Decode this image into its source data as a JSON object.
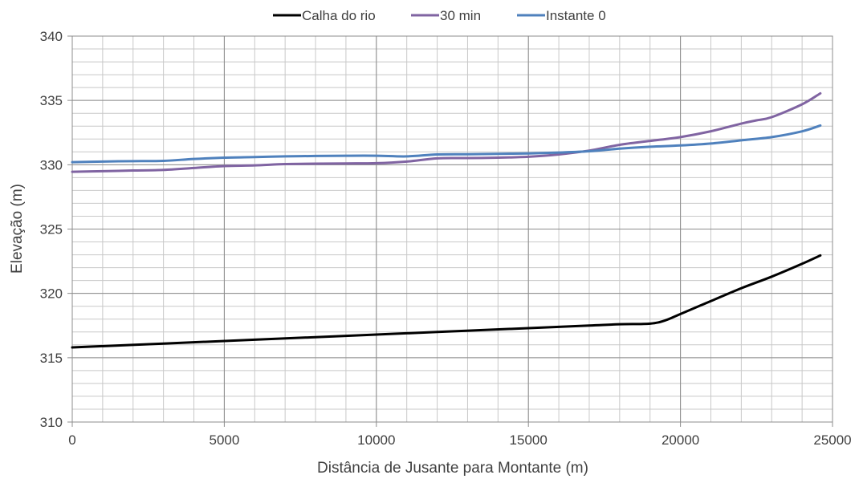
{
  "chart_data": {
    "type": "line",
    "xlabel": "Distância de Jusante para Montante (m)",
    "ylabel": "Elevação (m)",
    "xlim": [
      0,
      25000
    ],
    "ylim": [
      310,
      340
    ],
    "x_ticks": [
      0,
      5000,
      10000,
      15000,
      20000,
      25000
    ],
    "y_ticks": [
      310,
      315,
      320,
      325,
      330,
      335,
      340
    ],
    "x_tick_labels": [
      "0",
      "5000",
      "10000",
      "15000",
      "20000",
      "25000"
    ],
    "y_tick_labels": [
      "310",
      "315",
      "320",
      "325",
      "330",
      "335",
      "340"
    ],
    "grid": "on (major and minor)",
    "legend_position": "top",
    "series": [
      {
        "name": "Calha do rio",
        "color": "#000000",
        "points": [
          [
            0,
            315.8
          ],
          [
            3000,
            316.1
          ],
          [
            6000,
            316.4
          ],
          [
            9000,
            316.7
          ],
          [
            12000,
            317.0
          ],
          [
            15000,
            317.3
          ],
          [
            17000,
            317.5
          ],
          [
            18000,
            317.6
          ],
          [
            19000,
            317.65
          ],
          [
            19500,
            317.9
          ],
          [
            20000,
            318.4
          ],
          [
            21000,
            319.4
          ],
          [
            22000,
            320.4
          ],
          [
            23000,
            321.3
          ],
          [
            24000,
            322.3
          ],
          [
            24600,
            322.95
          ]
        ]
      },
      {
        "name": "30 min",
        "color": "#8064A2",
        "points": [
          [
            0,
            329.45
          ],
          [
            1000,
            329.5
          ],
          [
            2000,
            329.55
          ],
          [
            3000,
            329.6
          ],
          [
            4000,
            329.75
          ],
          [
            5000,
            329.9
          ],
          [
            6000,
            329.95
          ],
          [
            7000,
            330.05
          ],
          [
            8000,
            330.08
          ],
          [
            9000,
            330.1
          ],
          [
            10000,
            330.12
          ],
          [
            11000,
            330.25
          ],
          [
            12000,
            330.5
          ],
          [
            13000,
            330.52
          ],
          [
            14000,
            330.55
          ],
          [
            15000,
            330.62
          ],
          [
            16000,
            330.8
          ],
          [
            17000,
            331.1
          ],
          [
            18000,
            331.55
          ],
          [
            19000,
            331.85
          ],
          [
            20000,
            332.15
          ],
          [
            21000,
            332.6
          ],
          [
            22000,
            333.2
          ],
          [
            22500,
            333.45
          ],
          [
            23000,
            333.7
          ],
          [
            24000,
            334.7
          ],
          [
            24600,
            335.55
          ]
        ]
      },
      {
        "name": "Instante 0",
        "color": "#4F81BD",
        "points": [
          [
            0,
            330.2
          ],
          [
            1000,
            330.25
          ],
          [
            2000,
            330.28
          ],
          [
            3000,
            330.3
          ],
          [
            4000,
            330.45
          ],
          [
            5000,
            330.55
          ],
          [
            6000,
            330.6
          ],
          [
            7000,
            330.65
          ],
          [
            8000,
            330.68
          ],
          [
            9000,
            330.7
          ],
          [
            10000,
            330.7
          ],
          [
            11000,
            330.65
          ],
          [
            12000,
            330.8
          ],
          [
            13000,
            330.82
          ],
          [
            14000,
            330.85
          ],
          [
            15000,
            330.88
          ],
          [
            16000,
            330.95
          ],
          [
            17000,
            331.05
          ],
          [
            18000,
            331.25
          ],
          [
            19000,
            331.4
          ],
          [
            20000,
            331.5
          ],
          [
            21000,
            331.65
          ],
          [
            22000,
            331.9
          ],
          [
            23000,
            332.15
          ],
          [
            24000,
            332.6
          ],
          [
            24600,
            333.05
          ]
        ]
      }
    ]
  }
}
